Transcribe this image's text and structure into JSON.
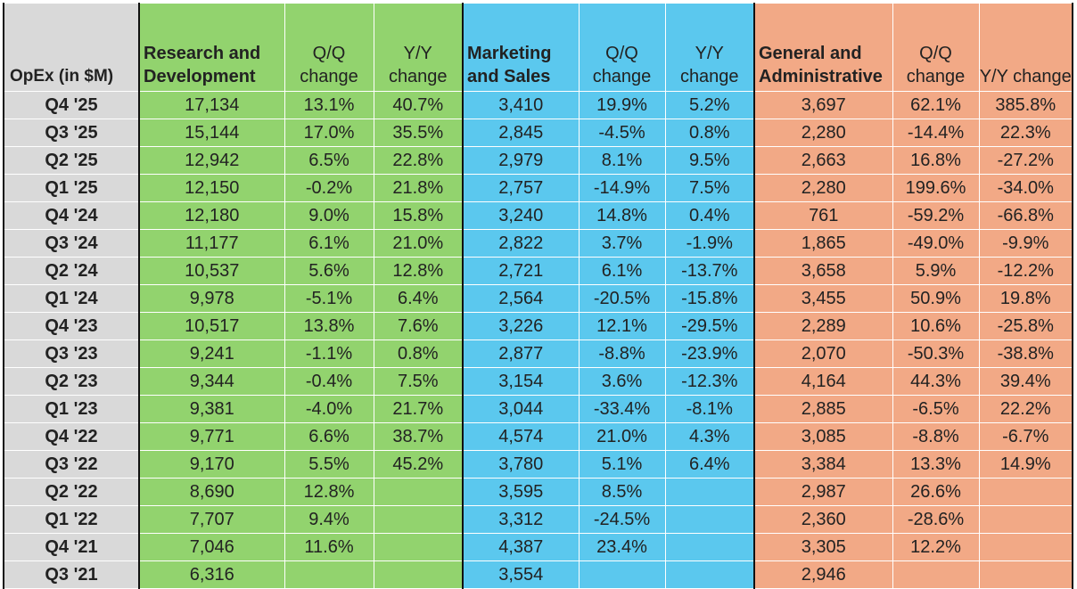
{
  "chart_data": {
    "type": "table",
    "header": {
      "label": "OpEx (in $M)",
      "rd": "Research and Development",
      "ms": "Marketing and Sales",
      "ga": "General and Administrative",
      "qq": "Q/Q change",
      "yy": "Y/Y change"
    },
    "rows": [
      {
        "q": "Q4 '25",
        "rd": "17,134",
        "rd_qq": "13.1%",
        "rd_yy": "40.7%",
        "ms": "3,410",
        "ms_qq": "19.9%",
        "ms_yy": "5.2%",
        "ga": "3,697",
        "ga_qq": "62.1%",
        "ga_yy": "385.8%"
      },
      {
        "q": "Q3 '25",
        "rd": "15,144",
        "rd_qq": "17.0%",
        "rd_yy": "35.5%",
        "ms": "2,845",
        "ms_qq": "-4.5%",
        "ms_yy": "0.8%",
        "ga": "2,280",
        "ga_qq": "-14.4%",
        "ga_yy": "22.3%"
      },
      {
        "q": "Q2 '25",
        "rd": "12,942",
        "rd_qq": "6.5%",
        "rd_yy": "22.8%",
        "ms": "2,979",
        "ms_qq": "8.1%",
        "ms_yy": "9.5%",
        "ga": "2,663",
        "ga_qq": "16.8%",
        "ga_yy": "-27.2%"
      },
      {
        "q": "Q1 '25",
        "rd": "12,150",
        "rd_qq": "-0.2%",
        "rd_yy": "21.8%",
        "ms": "2,757",
        "ms_qq": "-14.9%",
        "ms_yy": "7.5%",
        "ga": "2,280",
        "ga_qq": "199.6%",
        "ga_yy": "-34.0%"
      },
      {
        "q": "Q4 '24",
        "rd": "12,180",
        "rd_qq": "9.0%",
        "rd_yy": "15.8%",
        "ms": "3,240",
        "ms_qq": "14.8%",
        "ms_yy": "0.4%",
        "ga": "761",
        "ga_qq": "-59.2%",
        "ga_yy": "-66.8%"
      },
      {
        "q": "Q3 '24",
        "rd": "11,177",
        "rd_qq": "6.1%",
        "rd_yy": "21.0%",
        "ms": "2,822",
        "ms_qq": "3.7%",
        "ms_yy": "-1.9%",
        "ga": "1,865",
        "ga_qq": "-49.0%",
        "ga_yy": "-9.9%"
      },
      {
        "q": "Q2 '24",
        "rd": "10,537",
        "rd_qq": "5.6%",
        "rd_yy": "12.8%",
        "ms": "2,721",
        "ms_qq": "6.1%",
        "ms_yy": "-13.7%",
        "ga": "3,658",
        "ga_qq": "5.9%",
        "ga_yy": "-12.2%"
      },
      {
        "q": "Q1 '24",
        "rd": "9,978",
        "rd_qq": "-5.1%",
        "rd_yy": "6.4%",
        "ms": "2,564",
        "ms_qq": "-20.5%",
        "ms_yy": "-15.8%",
        "ga": "3,455",
        "ga_qq": "50.9%",
        "ga_yy": "19.8%"
      },
      {
        "q": "Q4 '23",
        "rd": "10,517",
        "rd_qq": "13.8%",
        "rd_yy": "7.6%",
        "ms": "3,226",
        "ms_qq": "12.1%",
        "ms_yy": "-29.5%",
        "ga": "2,289",
        "ga_qq": "10.6%",
        "ga_yy": "-25.8%"
      },
      {
        "q": "Q3 '23",
        "rd": "9,241",
        "rd_qq": "-1.1%",
        "rd_yy": "0.8%",
        "ms": "2,877",
        "ms_qq": "-8.8%",
        "ms_yy": "-23.9%",
        "ga": "2,070",
        "ga_qq": "-50.3%",
        "ga_yy": "-38.8%"
      },
      {
        "q": "Q2 '23",
        "rd": "9,344",
        "rd_qq": "-0.4%",
        "rd_yy": "7.5%",
        "ms": "3,154",
        "ms_qq": "3.6%",
        "ms_yy": "-12.3%",
        "ga": "4,164",
        "ga_qq": "44.3%",
        "ga_yy": "39.4%"
      },
      {
        "q": "Q1 '23",
        "rd": "9,381",
        "rd_qq": "-4.0%",
        "rd_yy": "21.7%",
        "ms": "3,044",
        "ms_qq": "-33.4%",
        "ms_yy": "-8.1%",
        "ga": "2,885",
        "ga_qq": "-6.5%",
        "ga_yy": "22.2%"
      },
      {
        "q": "Q4 '22",
        "rd": "9,771",
        "rd_qq": "6.6%",
        "rd_yy": "38.7%",
        "ms": "4,574",
        "ms_qq": "21.0%",
        "ms_yy": "4.3%",
        "ga": "3,085",
        "ga_qq": "-8.8%",
        "ga_yy": "-6.7%"
      },
      {
        "q": "Q3 '22",
        "rd": "9,170",
        "rd_qq": "5.5%",
        "rd_yy": "45.2%",
        "ms": "3,780",
        "ms_qq": "5.1%",
        "ms_yy": "6.4%",
        "ga": "3,384",
        "ga_qq": "13.3%",
        "ga_yy": "14.9%"
      },
      {
        "q": "Q2 '22",
        "rd": "8,690",
        "rd_qq": "12.8%",
        "rd_yy": "",
        "ms": "3,595",
        "ms_qq": "8.5%",
        "ms_yy": "",
        "ga": "2,987",
        "ga_qq": "26.6%",
        "ga_yy": ""
      },
      {
        "q": "Q1 '22",
        "rd": "7,707",
        "rd_qq": "9.4%",
        "rd_yy": "",
        "ms": "3,312",
        "ms_qq": "-24.5%",
        "ms_yy": "",
        "ga": "2,360",
        "ga_qq": "-28.6%",
        "ga_yy": ""
      },
      {
        "q": "Q4 '21",
        "rd": "7,046",
        "rd_qq": "11.6%",
        "rd_yy": "",
        "ms": "4,387",
        "ms_qq": "23.4%",
        "ms_yy": "",
        "ga": "3,305",
        "ga_qq": "12.2%",
        "ga_yy": ""
      },
      {
        "q": "Q3 '21",
        "rd": "6,316",
        "rd_qq": "",
        "rd_yy": "",
        "ms": "3,554",
        "ms_qq": "",
        "ms_yy": "",
        "ga": "2,946",
        "ga_qq": "",
        "ga_yy": ""
      }
    ]
  },
  "colors": {
    "label_bg": "#d9d9d9",
    "rd_bg": "#92d36e",
    "ms_bg": "#5bc8ee",
    "ga_bg": "#f2a986"
  }
}
